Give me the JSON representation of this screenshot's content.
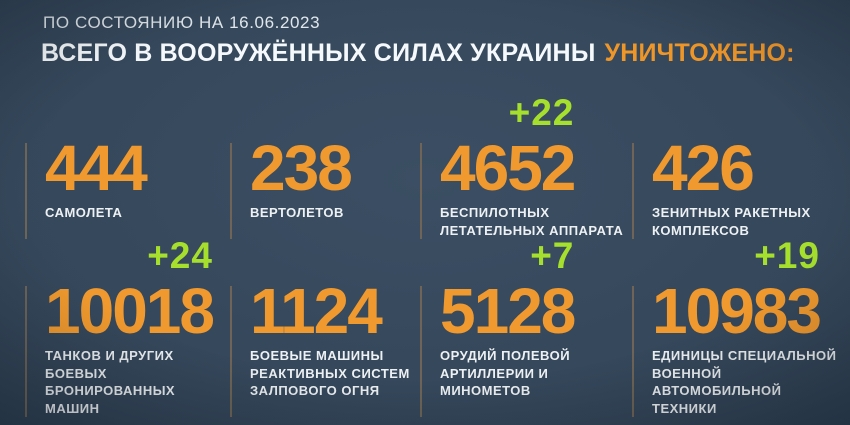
{
  "header": {
    "date_line": "ПО СОСТОЯНИЮ НА 16.06.2023",
    "title_main": "ВСЕГО В ВООРУЖЁННЫХ СИЛАХ УКРАИНЫ",
    "title_accent": "УНИЧТОЖЕНО:"
  },
  "colors": {
    "background": "#33455a",
    "accent_orange": "#f0992e",
    "delta_green": "#a6e02c",
    "rule": "#6f6456",
    "text_white": "#eef1f3"
  },
  "stats": [
    {
      "value": "444",
      "delta": "",
      "label": "САМОЛЕТА"
    },
    {
      "value": "238",
      "delta": "",
      "label": "ВЕРТОЛЕТОВ"
    },
    {
      "value": "4652",
      "delta": "+22",
      "label": "БЕСПИЛОТНЫХ\nЛЕТАТЕЛЬНЫХ АППАРАТА"
    },
    {
      "value": "426",
      "delta": "",
      "label": "ЗЕНИТНЫХ РАКЕТНЫХ\nКОМПЛЕКСОВ"
    },
    {
      "value": "10018",
      "delta": "+24",
      "label": "ТАНКОВ И ДРУГИХ БОЕВЫХ\nБРОНИРОВАННЫХ МАШИН"
    },
    {
      "value": "1124",
      "delta": "",
      "label": "БОЕВЫЕ МАШИНЫ\nРЕАКТИВНЫХ СИСТЕМ\nЗАЛПОВОГО ОГНЯ"
    },
    {
      "value": "5128",
      "delta": "+7",
      "label": "ОРУДИЙ ПОЛЕВОЙ\nАРТИЛЛЕРИИ И МИНОМЕТОВ"
    },
    {
      "value": "10983",
      "delta": "+19",
      "label": "ЕДИНИЦЫ СПЕЦИАЛЬНОЙ\nВОЕННОЙ АВТОМОБИЛЬНОЙ\nТЕХНИКИ"
    }
  ],
  "chart_data": {
    "type": "table",
    "title": "ВСЕГО В ВООРУЖЁННЫХ СИЛАХ УКРАИНЫ УНИЧТОЖЕНО:",
    "subtitle": "ПО СОСТОЯНИЮ НА 16.06.2023",
    "categories": [
      "самолета",
      "вертолетов",
      "беспилотных летательных аппарата",
      "зенитных ракетных комплексов",
      "танков и других боевых бронированных машин",
      "боевые машины реактивных систем залпового огня",
      "орудий полевой артиллерии и минометов",
      "единицы специальной военной автомобильной техники"
    ],
    "values": [
      444,
      238,
      4652,
      426,
      10018,
      1124,
      5128,
      10983
    ],
    "deltas": [
      null,
      null,
      22,
      null,
      24,
      null,
      7,
      19
    ]
  }
}
